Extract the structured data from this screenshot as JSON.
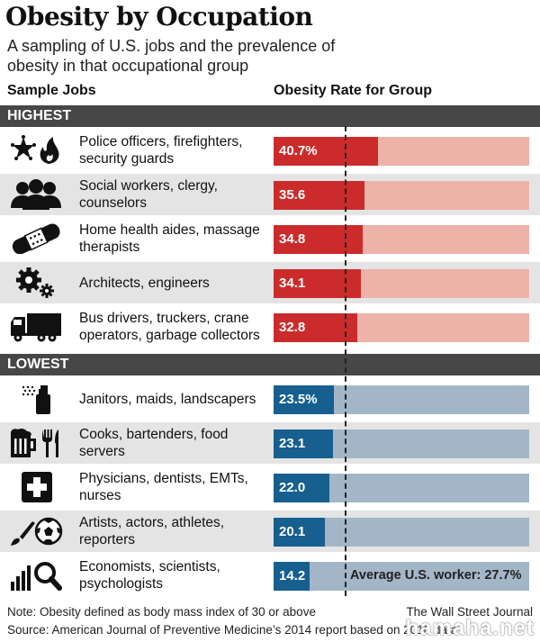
{
  "title": "Obesity by Occupation",
  "subtitle": "A sampling of U.S. jobs and the prevalence of obesity in that occupational group",
  "col_jobs": "Sample Jobs",
  "col_rate": "Obesity Rate for Group",
  "section_highest": "HIGHEST",
  "section_lowest": "LOWEST",
  "colors": {
    "red": "#cc2b2b",
    "red_light": "#edb3a8",
    "blue": "#165f8e",
    "blue_light": "#a3b6c7",
    "header": "#474747"
  },
  "chart_data": {
    "type": "bar",
    "orientation": "horizontal",
    "xlim": [
      0,
      100
    ],
    "reference_line": {
      "value": 27.7,
      "label": "Average U.S. worker: 27.7%"
    },
    "groups": [
      {
        "name": "HIGHEST",
        "rows": [
          {
            "label": "Police officers, firefighters, security guards",
            "value": 40.7,
            "display": "40.7%",
            "icon": "police-star-flame-icon"
          },
          {
            "label": "Social workers, clergy, counselors",
            "value": 35.6,
            "display": "35.6",
            "icon": "people-group-icon"
          },
          {
            "label": "Home health aides, massage therapists",
            "value": 34.8,
            "display": "34.8",
            "icon": "bandage-icon"
          },
          {
            "label": "Architects, engineers",
            "value": 34.1,
            "display": "34.1",
            "icon": "gears-icon"
          },
          {
            "label": "Bus drivers, truckers, crane operators, garbage collectors",
            "value": 32.8,
            "display": "32.8",
            "icon": "truck-icon"
          }
        ]
      },
      {
        "name": "LOWEST",
        "rows": [
          {
            "label": "Janitors, maids, landscapers",
            "value": 23.5,
            "display": "23.5%",
            "icon": "spray-bottle-icon"
          },
          {
            "label": "Cooks, bartenders, food servers",
            "value": 23.1,
            "display": "23.1",
            "icon": "beer-fork-knife-icon"
          },
          {
            "label": "Physicians, dentists, EMTs, nurses",
            "value": 22.0,
            "display": "22.0",
            "icon": "medical-cross-icon"
          },
          {
            "label": "Artists, actors, athletes, reporters",
            "value": 20.1,
            "display": "20.1",
            "icon": "brush-ball-icon"
          },
          {
            "label": "Economists, scientists, psychologists",
            "value": 14.2,
            "display": "14.2",
            "icon": "chart-magnifier-icon"
          }
        ]
      }
    ]
  },
  "note": "Note: Obesity defined as body mass index of 30 or above",
  "credit": "The Wall Street Journal",
  "source": "Source: American Journal of Preventive Medicine’s 2014 report based on 2010 data",
  "watermark": "hamaha.net"
}
